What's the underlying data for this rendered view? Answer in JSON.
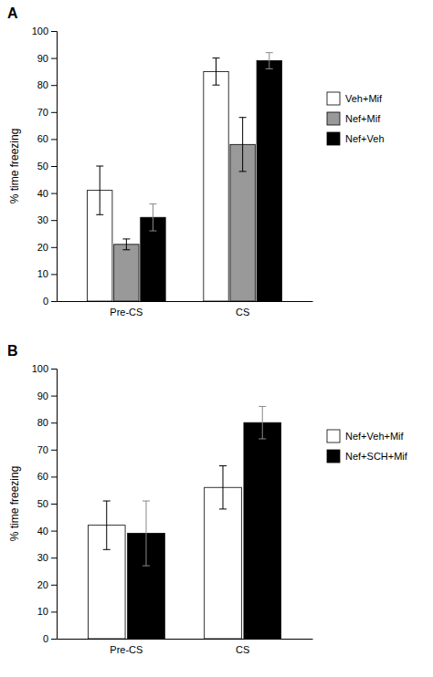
{
  "chart_data": [
    {
      "type": "bar",
      "title": "A",
      "categories": [
        "Pre-CS",
        "CS"
      ],
      "series": [
        {
          "name": "Veh+Mif",
          "color": "white",
          "values": [
            41,
            85
          ],
          "errors": [
            9,
            5
          ]
        },
        {
          "name": "Nef+Mif",
          "color": "#999999",
          "values": [
            21,
            58
          ],
          "errors": [
            2,
            10
          ]
        },
        {
          "name": "Nef+Veh",
          "color": "black",
          "values": [
            31,
            89
          ],
          "errors": [
            5,
            3
          ]
        }
      ],
      "y_label": "% time freezing",
      "ylim": [
        0,
        100
      ],
      "yticks": [
        0,
        10,
        20,
        30,
        40,
        50,
        60,
        70,
        80,
        90,
        100
      ],
      "legend": "right",
      "grid": false
    },
    {
      "type": "bar",
      "title": "B",
      "categories": [
        "Pre-CS",
        "CS"
      ],
      "series": [
        {
          "name": "Nef+Veh+Mif",
          "color": "white",
          "values": [
            42,
            56
          ],
          "errors": [
            9,
            8
          ]
        },
        {
          "name": "Nef+SCH+Mif",
          "color": "black",
          "values": [
            39,
            80
          ],
          "errors": [
            12,
            6
          ]
        }
      ],
      "y_label": "% time freezing",
      "ylim": [
        0,
        100
      ],
      "yticks": [
        0,
        10,
        20,
        30,
        40,
        50,
        60,
        70,
        80,
        90,
        100
      ],
      "legend": "right",
      "grid": false
    }
  ]
}
